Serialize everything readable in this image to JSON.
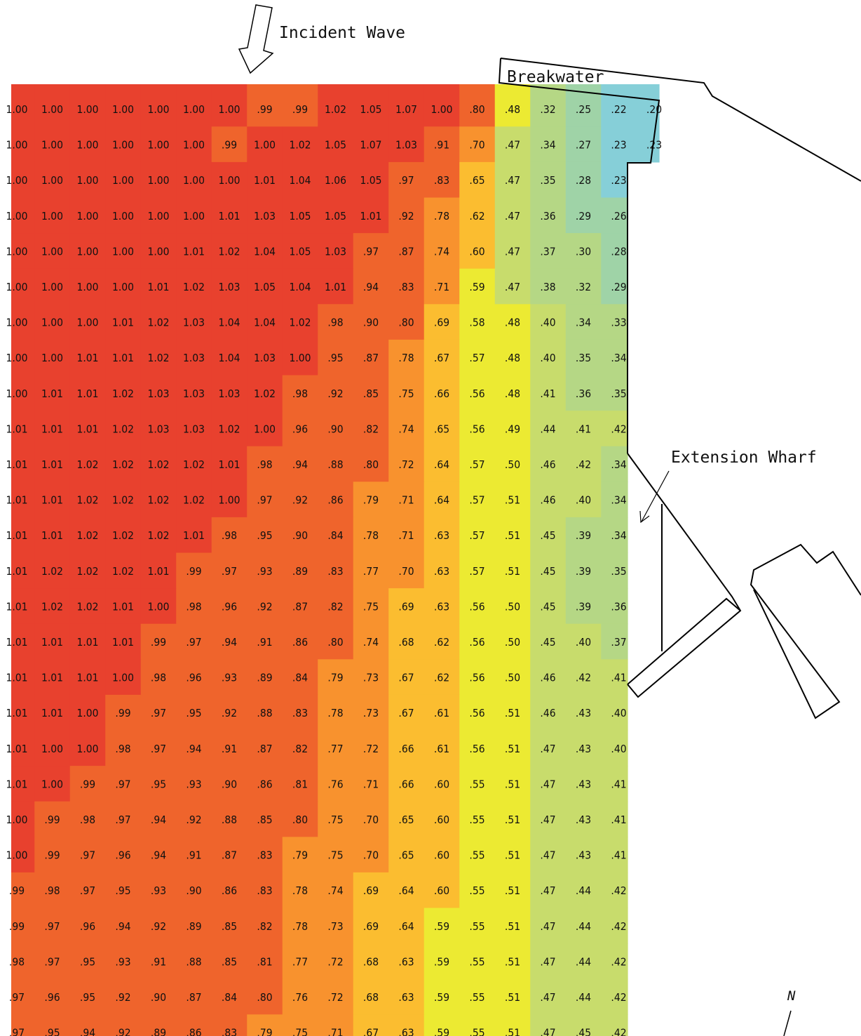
{
  "labels": {
    "incident_wave": "Incident Wave",
    "breakwater": "Breakwater",
    "extension_wharf": "Extension Wharf",
    "north": "N"
  },
  "colors": {
    "background": "#ffffff",
    "outline": "#000000",
    "contour_fills": [
      {
        "min": 1.0,
        "color": "#e8412e"
      },
      {
        "min": 0.8,
        "color": "#ef642c"
      },
      {
        "min": 0.7,
        "color": "#f8922e"
      },
      {
        "min": 0.6,
        "color": "#fbbd30"
      },
      {
        "min": 0.48,
        "color": "#ecea32"
      },
      {
        "min": 0.4,
        "color": "#c8dc6c"
      },
      {
        "min": 0.3,
        "color": "#b5d785"
      },
      {
        "min": 0.25,
        "color": "#9fd3a7"
      },
      {
        "min": 0.0,
        "color": "#86cfd8"
      }
    ]
  },
  "grid_values": [
    [
      "1.00",
      "1.00",
      "1.00",
      "1.00",
      "1.00",
      "1.00",
      "1.00",
      ".99",
      ".99",
      "1.02",
      "1.05",
      "1.07",
      "1.00",
      ".80",
      ".48",
      ".32",
      ".25",
      ".22",
      ".20"
    ],
    [
      "1.00",
      "1.00",
      "1.00",
      "1.00",
      "1.00",
      "1.00",
      ".99",
      "1.00",
      "1.02",
      "1.05",
      "1.07",
      "1.03",
      ".91",
      ".70",
      ".47",
      ".34",
      ".27",
      ".23",
      ".23"
    ],
    [
      "1.00",
      "1.00",
      "1.00",
      "1.00",
      "1.00",
      "1.00",
      "1.00",
      "1.01",
      "1.04",
      "1.06",
      "1.05",
      ".97",
      ".83",
      ".65",
      ".47",
      ".35",
      ".28",
      ".23"
    ],
    [
      "1.00",
      "1.00",
      "1.00",
      "1.00",
      "1.00",
      "1.00",
      "1.01",
      "1.03",
      "1.05",
      "1.05",
      "1.01",
      ".92",
      ".78",
      ".62",
      ".47",
      ".36",
      ".29",
      ".26"
    ],
    [
      "1.00",
      "1.00",
      "1.00",
      "1.00",
      "1.00",
      "1.01",
      "1.02",
      "1.04",
      "1.05",
      "1.03",
      ".97",
      ".87",
      ".74",
      ".60",
      ".47",
      ".37",
      ".30",
      ".28"
    ],
    [
      "1.00",
      "1.00",
      "1.00",
      "1.00",
      "1.01",
      "1.02",
      "1.03",
      "1.05",
      "1.04",
      "1.01",
      ".94",
      ".83",
      ".71",
      ".59",
      ".47",
      ".38",
      ".32",
      ".29"
    ],
    [
      "1.00",
      "1.00",
      "1.00",
      "1.01",
      "1.02",
      "1.03",
      "1.04",
      "1.04",
      "1.02",
      ".98",
      ".90",
      ".80",
      ".69",
      ".58",
      ".48",
      ".40",
      ".34",
      ".33"
    ],
    [
      "1.00",
      "1.00",
      "1.01",
      "1.01",
      "1.02",
      "1.03",
      "1.04",
      "1.03",
      "1.00",
      ".95",
      ".87",
      ".78",
      ".67",
      ".57",
      ".48",
      ".40",
      ".35",
      ".34"
    ],
    [
      "1.00",
      "1.01",
      "1.01",
      "1.02",
      "1.03",
      "1.03",
      "1.03",
      "1.02",
      ".98",
      ".92",
      ".85",
      ".75",
      ".66",
      ".56",
      ".48",
      ".41",
      ".36",
      ".35"
    ],
    [
      "1.01",
      "1.01",
      "1.01",
      "1.02",
      "1.03",
      "1.03",
      "1.02",
      "1.00",
      ".96",
      ".90",
      ".82",
      ".74",
      ".65",
      ".56",
      ".49",
      ".44",
      ".41",
      ".42"
    ],
    [
      "1.01",
      "1.01",
      "1.02",
      "1.02",
      "1.02",
      "1.02",
      "1.01",
      ".98",
      ".94",
      ".88",
      ".80",
      ".72",
      ".64",
      ".57",
      ".50",
      ".46",
      ".42",
      ".34"
    ],
    [
      "1.01",
      "1.01",
      "1.02",
      "1.02",
      "1.02",
      "1.02",
      "1.00",
      ".97",
      ".92",
      ".86",
      ".79",
      ".71",
      ".64",
      ".57",
      ".51",
      ".46",
      ".40",
      ".34"
    ],
    [
      "1.01",
      "1.01",
      "1.02",
      "1.02",
      "1.02",
      "1.01",
      ".98",
      ".95",
      ".90",
      ".84",
      ".78",
      ".71",
      ".63",
      ".57",
      ".51",
      ".45",
      ".39",
      ".34"
    ],
    [
      "1.01",
      "1.02",
      "1.02",
      "1.02",
      "1.01",
      ".99",
      ".97",
      ".93",
      ".89",
      ".83",
      ".77",
      ".70",
      ".63",
      ".57",
      ".51",
      ".45",
      ".39",
      ".35"
    ],
    [
      "1.01",
      "1.02",
      "1.02",
      "1.01",
      "1.00",
      ".98",
      ".96",
      ".92",
      ".87",
      ".82",
      ".75",
      ".69",
      ".63",
      ".56",
      ".50",
      ".45",
      ".39",
      ".36"
    ],
    [
      "1.01",
      "1.01",
      "1.01",
      "1.01",
      ".99",
      ".97",
      ".94",
      ".91",
      ".86",
      ".80",
      ".74",
      ".68",
      ".62",
      ".56",
      ".50",
      ".45",
      ".40",
      ".37"
    ],
    [
      "1.01",
      "1.01",
      "1.01",
      "1.00",
      ".98",
      ".96",
      ".93",
      ".89",
      ".84",
      ".79",
      ".73",
      ".67",
      ".62",
      ".56",
      ".50",
      ".46",
      ".42",
      ".41"
    ],
    [
      "1.01",
      "1.01",
      "1.00",
      ".99",
      ".97",
      ".95",
      ".92",
      ".88",
      ".83",
      ".78",
      ".73",
      ".67",
      ".61",
      ".56",
      ".51",
      ".46",
      ".43",
      ".40"
    ],
    [
      "1.01",
      "1.00",
      "1.00",
      ".98",
      ".97",
      ".94",
      ".91",
      ".87",
      ".82",
      ".77",
      ".72",
      ".66",
      ".61",
      ".56",
      ".51",
      ".47",
      ".43",
      ".40"
    ],
    [
      "1.01",
      "1.00",
      ".99",
      ".97",
      ".95",
      ".93",
      ".90",
      ".86",
      ".81",
      ".76",
      ".71",
      ".66",
      ".60",
      ".55",
      ".51",
      ".47",
      ".43",
      ".41"
    ],
    [
      "1.00",
      ".99",
      ".98",
      ".97",
      ".94",
      ".92",
      ".88",
      ".85",
      ".80",
      ".75",
      ".70",
      ".65",
      ".60",
      ".55",
      ".51",
      ".47",
      ".43",
      ".41"
    ],
    [
      "1.00",
      ".99",
      ".97",
      ".96",
      ".94",
      ".91",
      ".87",
      ".83",
      ".79",
      ".75",
      ".70",
      ".65",
      ".60",
      ".55",
      ".51",
      ".47",
      ".43",
      ".41"
    ],
    [
      ".99",
      ".98",
      ".97",
      ".95",
      ".93",
      ".90",
      ".86",
      ".83",
      ".78",
      ".74",
      ".69",
      ".64",
      ".60",
      ".55",
      ".51",
      ".47",
      ".44",
      ".42"
    ],
    [
      ".99",
      ".97",
      ".96",
      ".94",
      ".92",
      ".89",
      ".85",
      ".82",
      ".78",
      ".73",
      ".69",
      ".64",
      ".59",
      ".55",
      ".51",
      ".47",
      ".44",
      ".42"
    ],
    [
      ".98",
      ".97",
      ".95",
      ".93",
      ".91",
      ".88",
      ".85",
      ".81",
      ".77",
      ".72",
      ".68",
      ".63",
      ".59",
      ".55",
      ".51",
      ".47",
      ".44",
      ".42"
    ],
    [
      ".97",
      ".96",
      ".95",
      ".92",
      ".90",
      ".87",
      ".84",
      ".80",
      ".76",
      ".72",
      ".68",
      ".63",
      ".59",
      ".55",
      ".51",
      ".47",
      ".44",
      ".42"
    ],
    [
      ".97",
      ".95",
      ".94",
      ".92",
      ".89",
      ".86",
      ".83",
      ".79",
      ".75",
      ".71",
      ".67",
      ".63",
      ".59",
      ".55",
      ".51",
      ".47",
      ".45",
      ".42"
    ]
  ]
}
